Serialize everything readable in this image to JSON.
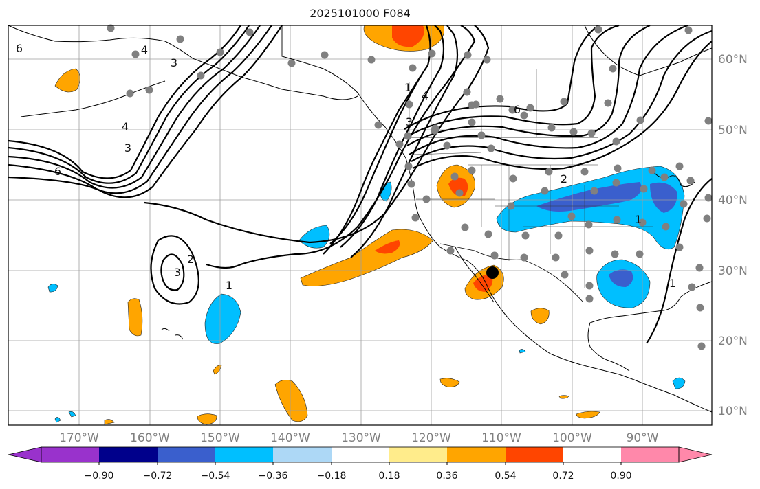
{
  "title": "2025101000 F084",
  "map": {
    "projection": "plate-carree",
    "lon_range": [
      -180,
      -80
    ],
    "lat_range": [
      8,
      65
    ],
    "gridlines": true
  },
  "lon_ticks": [
    "170°W",
    "160°W",
    "150°W",
    "140°W",
    "130°W",
    "120°W",
    "110°W",
    "100°W",
    "90°W"
  ],
  "lat_ticks": [
    "60°N",
    "50°N",
    "40°N",
    "30°N",
    "20°N",
    "10°N"
  ],
  "colorbar": {
    "orientation": "horizontal",
    "extend": "both",
    "tick_labels": [
      "−0.90",
      "−0.72",
      "−0.54",
      "−0.36",
      "−0.18",
      "0.18",
      "0.36",
      "0.54",
      "0.72",
      "0.90"
    ],
    "colors": [
      "#9932cc",
      "#00008b",
      "#3a5fcd",
      "#00bfff",
      "#add8f6",
      "#ffffff",
      "#ffec8b",
      "#ffa500",
      "#ff4500",
      "#b22222",
      "#ff88aa"
    ]
  },
  "contour_labels": [
    "6",
    "4",
    "3",
    "6",
    "4",
    "3",
    "1",
    "3",
    "2",
    "3",
    "1",
    "4",
    "6",
    "2",
    "1",
    "1"
  ],
  "markers": {
    "station_color": "#808080",
    "station_count": 83,
    "highlight_color": "#000000"
  }
}
